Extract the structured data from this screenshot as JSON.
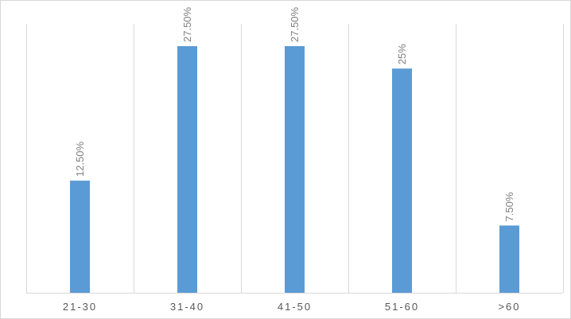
{
  "chart_data": {
    "type": "bar",
    "title": "",
    "xlabel": "",
    "ylabel": "",
    "categories": [
      "21-30",
      "31-40",
      "41-50",
      "51-60",
      ">60"
    ],
    "values": [
      12.5,
      27.5,
      27.5,
      25,
      7.5
    ],
    "data_labels": [
      "12.50%",
      "27.50%",
      "27.50%",
      "25%",
      "7.50%"
    ],
    "ylim": [
      0,
      27.5
    ],
    "grid": "vertical category separators",
    "legend": "none",
    "bar_color": "#5b9bd5",
    "grid_color": "#d9d9d9",
    "label_color": "#808080",
    "tick_color": "#595959"
  }
}
